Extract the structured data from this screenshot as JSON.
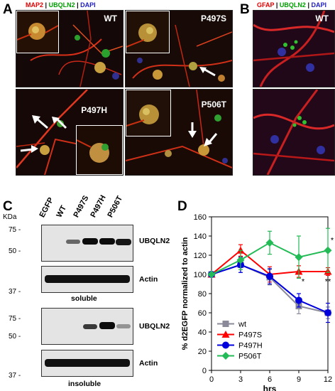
{
  "panels": {
    "A": {
      "letter": "A",
      "legend": {
        "map2": "MAP2",
        "ubqln2": "UBQLN2",
        "dapi": "DAPI",
        "sep": "|"
      },
      "labels": {
        "wt": "WT",
        "p497s": "P497S",
        "p497h": "P497H",
        "p506t": "P506T"
      }
    },
    "B": {
      "letter": "B",
      "legend": {
        "gfap": "GFAP",
        "ubqln2": "UBQLN2",
        "dapi": "DAPI",
        "sep": "|"
      },
      "labels": {
        "wt": "WT"
      }
    },
    "C": {
      "letter": "C",
      "kda": "KDa",
      "lanes": [
        "EGFP",
        "WT",
        "P497S",
        "P497H",
        "P506T"
      ],
      "markers_top": [
        "75 -",
        "50 -",
        "37 -"
      ],
      "markers_bottom": [
        "75 -",
        "50 -",
        "37 -"
      ],
      "blot_labels": {
        "ubqln2_sol": "UBQLN2",
        "actin_sol": "Actin",
        "soluble": "soluble",
        "ubqln2_insol": "UBQLN2",
        "actin_insol": "Actin",
        "insoluble": "insoluble"
      },
      "band_intensity": {
        "soluble_ubqln2": [
          0.0,
          0.55,
          0.95,
          0.95,
          0.9
        ],
        "soluble_actin": [
          1,
          1,
          1,
          1,
          1
        ],
        "insoluble_ubqln2": [
          0.0,
          0.0,
          0.75,
          0.95,
          0.35
        ],
        "insoluble_actin": [
          1,
          1,
          1,
          1,
          1
        ]
      }
    },
    "D": {
      "letter": "D"
    }
  },
  "colors": {
    "map2": "#e00000",
    "ubqln2": "#00a000",
    "dapi": "#2020c0",
    "wt": "#8a8a9a",
    "p497s": "#ff0000",
    "p497h": "#0000dd",
    "p506t": "#22bb55"
  },
  "chart_data": {
    "type": "line",
    "xlabel": "hrs",
    "ylabel": "% d2EGFP normalized to actin",
    "xlim": [
      0,
      12
    ],
    "ylim": [
      0,
      160
    ],
    "xticks": [
      0,
      3,
      6,
      9,
      12
    ],
    "yticks": [
      0,
      20,
      40,
      60,
      80,
      100,
      120,
      140,
      160
    ],
    "legend_position": "bottom-left",
    "series": [
      {
        "name": "wt",
        "color": "#8a8a9a",
        "marker": "square",
        "x": [
          0,
          3,
          6,
          9,
          12
        ],
        "y": [
          100,
          110,
          97,
          67,
          60
        ],
        "err": [
          0,
          8,
          8,
          8,
          6
        ]
      },
      {
        "name": "P497S",
        "color": "#ff0000",
        "marker": "triangle",
        "x": [
          0,
          3,
          6,
          9,
          12
        ],
        "y": [
          100,
          125,
          100,
          103,
          103
        ],
        "err": [
          0,
          6,
          8,
          6,
          4
        ]
      },
      {
        "name": "P497H",
        "color": "#0000dd",
        "marker": "circle",
        "x": [
          0,
          3,
          6,
          9,
          12
        ],
        "y": [
          100,
          110,
          98,
          73,
          60
        ],
        "err": [
          0,
          8,
          8,
          7,
          10
        ]
      },
      {
        "name": "P506T",
        "color": "#22bb55",
        "marker": "diamond",
        "x": [
          0,
          3,
          6,
          9,
          12
        ],
        "y": [
          100,
          115,
          133,
          118,
          125
        ],
        "err": [
          0,
          10,
          12,
          22,
          23
        ]
      }
    ],
    "annotations": [
      {
        "x": 9,
        "y": 90,
        "text": "*"
      },
      {
        "x": 12,
        "y": 90,
        "text": "**"
      },
      {
        "x": 12,
        "y": 133,
        "text": "*"
      }
    ]
  }
}
